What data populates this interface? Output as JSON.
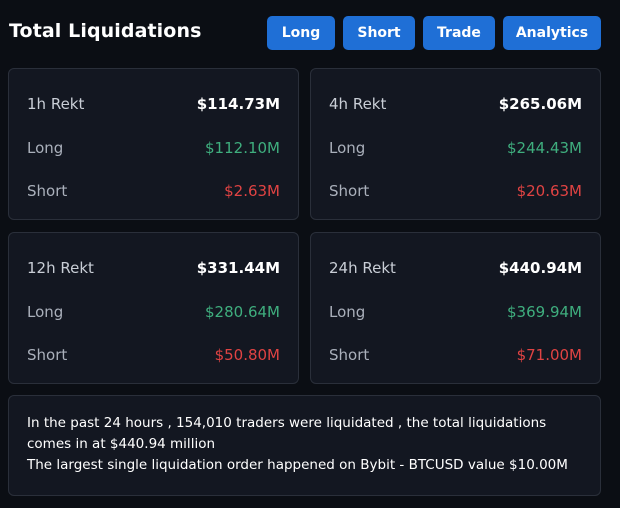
{
  "header": {
    "title": "Total Liquidations",
    "buttons": {
      "long": "Long",
      "short": "Short",
      "trade": "Trade",
      "analytics": "Analytics"
    }
  },
  "cards": [
    {
      "period_label": "1h Rekt",
      "total": "$114.73M",
      "long_label": "Long",
      "long_value": "$112.10M",
      "short_label": "Short",
      "short_value": "$2.63M"
    },
    {
      "period_label": "4h Rekt",
      "total": "$265.06M",
      "long_label": "Long",
      "long_value": "$244.43M",
      "short_label": "Short",
      "short_value": "$20.63M"
    },
    {
      "period_label": "12h Rekt",
      "total": "$331.44M",
      "long_label": "Long",
      "long_value": "$280.64M",
      "short_label": "Short",
      "short_value": "$50.80M"
    },
    {
      "period_label": "24h Rekt",
      "total": "$440.94M",
      "long_label": "Long",
      "long_value": "$369.94M",
      "short_label": "Short",
      "short_value": "$71.00M"
    }
  ],
  "summary": {
    "line1": "In the past 24 hours , 154,010 traders were liquidated , the total liquidations comes in at $440.94 million",
    "line2": "The largest single liquidation order happened on Bybit - BTCUSD value $10.00M"
  },
  "colors": {
    "accent_button": "#1f6fd6",
    "long_green": "#3fae7e",
    "short_red": "#e04343",
    "card_bg": "#131721",
    "page_bg": "#0b0e14"
  }
}
